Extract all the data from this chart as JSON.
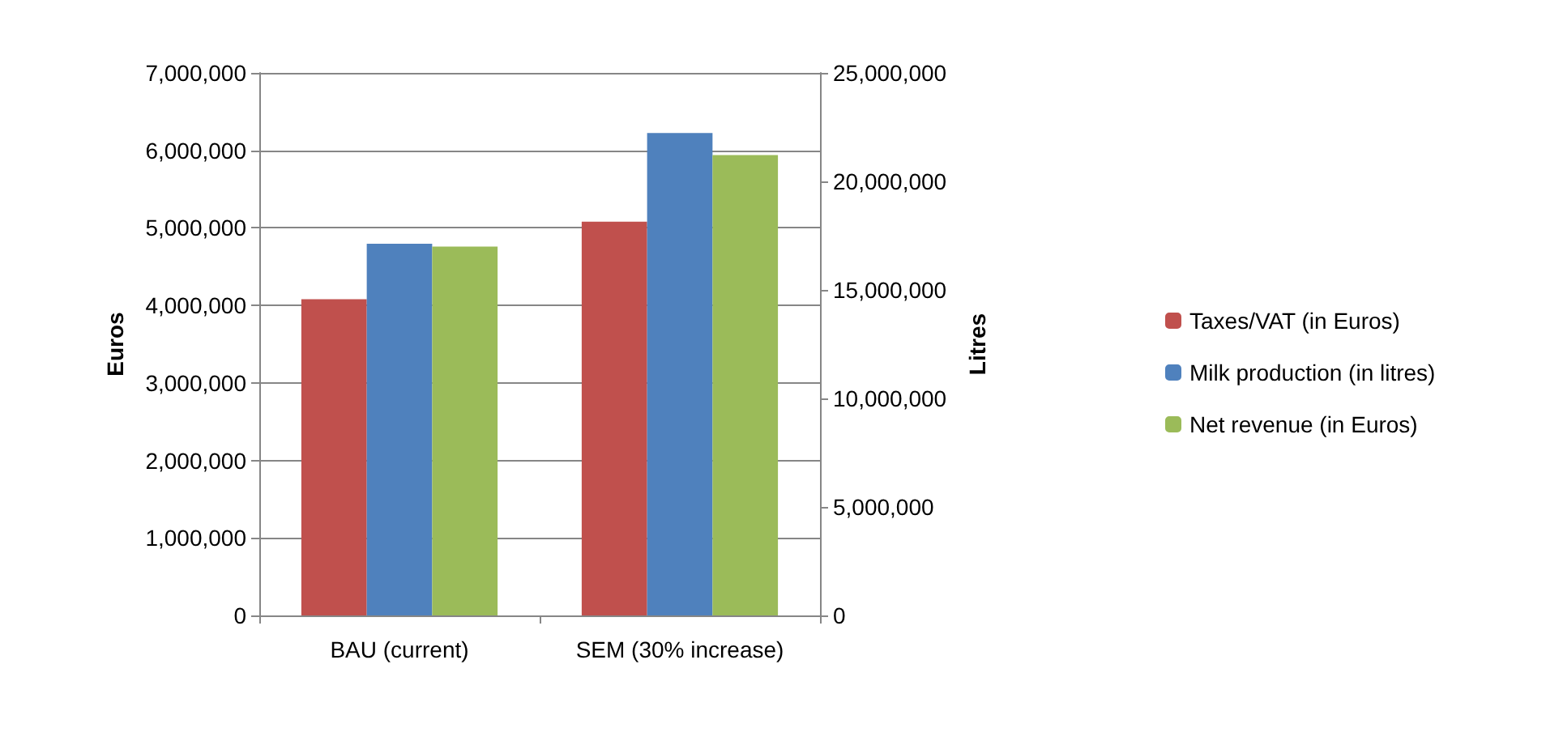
{
  "chart_data": {
    "type": "bar",
    "ylabel": "Euros",
    "y2label": "Litres",
    "categories": [
      "BAU (current)",
      "SEM (30% increase)"
    ],
    "series": [
      {
        "name": "Taxes/VAT (in Euros)",
        "color": "#c0504d",
        "values": [
          4080000,
          5080000
        ]
      },
      {
        "name": "Milk production (in litres)",
        "color": "#4f81bd",
        "values": [
          17130000,
          22230000
        ],
        "axis": "y2"
      },
      {
        "name": "Net revenue (in Euros)",
        "color": "#9bbb59",
        "values": [
          4760000,
          5940000
        ]
      }
    ],
    "ylim": [
      0,
      7000000
    ],
    "yticks": [
      0,
      {
        "value": 1000000,
        "label": "1,000,000"
      },
      {
        "value": 2000000,
        "label": "2,000,000"
      },
      {
        "value": 3000000,
        "label": "3,000,000"
      },
      {
        "value": 4000000,
        "label": "4,000,000"
      },
      {
        "value": 5000000,
        "label": "5,000,000"
      },
      {
        "value": 6000000,
        "label": "6,000,000"
      },
      {
        "value": 7000000,
        "label": "7,000,000"
      }
    ],
    "y2lim": [
      0,
      25000000
    ],
    "y2ticks": [
      0,
      {
        "value": 5000000,
        "label": "5,000,000"
      },
      {
        "value": 10000000,
        "label": "10,000,000"
      },
      {
        "value": 15000000,
        "label": "15,000,000"
      },
      {
        "value": 20000000,
        "label": "20,000,000"
      },
      {
        "value": 25000000,
        "label": "25,000,000"
      }
    ],
    "grid": "y",
    "legend": "right"
  }
}
